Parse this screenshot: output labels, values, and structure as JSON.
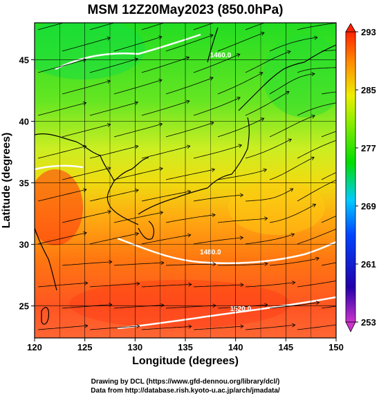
{
  "figure": {
    "title": "MSM 12Z20May2023 (850.0hPa)",
    "credit_line1": "Drawing by DCL (https://www.gfd-dennou.org/library/dcl/)",
    "credit_line2": "Data from http://database.rish.kyoto-u.ac.jp/arch/jmadata/"
  },
  "chart_data": {
    "type": "heatmap",
    "title": "MSM 12Z20May2023 (850.0hPa)",
    "xlabel": "Longitude (degrees)",
    "ylabel": "Latitude  (degrees)",
    "xlim": [
      120,
      150
    ],
    "ylim": [
      22.4,
      48.0
    ],
    "xticks": [
      "120",
      "125",
      "130",
      "135",
      "140",
      "145",
      "150"
    ],
    "yticks": [
      "25",
      "30",
      "35",
      "40",
      "45"
    ],
    "grid": true,
    "colorbar": {
      "min": 253,
      "max": 293,
      "ticks": [
        "293",
        "285",
        "277",
        "269",
        "261",
        "253"
      ],
      "colors": [
        "#cc33cc",
        "#0000cc",
        "#0099ff",
        "#00dd00",
        "#ccee00",
        "#ff9900",
        "#ff3300"
      ]
    },
    "contour_labels": [
      {
        "text": "1460.0",
        "lon": 138.5,
        "lat": 45.2
      },
      {
        "text": "1480.0",
        "lon": 137.5,
        "lat": 29.2
      },
      {
        "text": "1520.0",
        "lon": 140.5,
        "lat": 24.6
      }
    ],
    "overlays": [
      "temperature shading",
      "streamlines",
      "geopotential height contours",
      "coastlines"
    ]
  }
}
